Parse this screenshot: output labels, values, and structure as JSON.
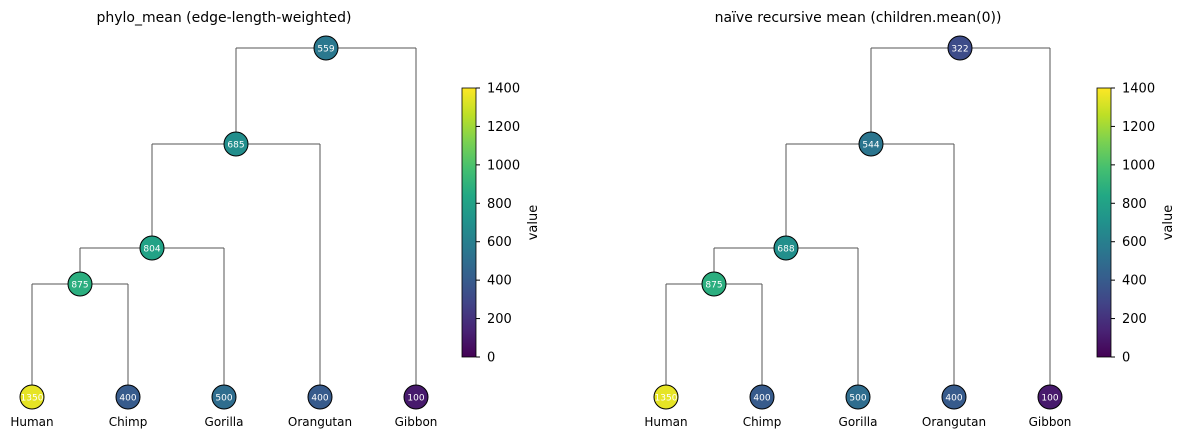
{
  "chart_data": [
    {
      "type": "tree",
      "title": "phylo_mean (edge-length-weighted)",
      "leaves": [
        {
          "name": "Human",
          "value": 1350
        },
        {
          "name": "Chimp",
          "value": 400
        },
        {
          "name": "Gorilla",
          "value": 500
        },
        {
          "name": "Orangutan",
          "value": 400
        },
        {
          "name": "Gibbon",
          "value": 100
        }
      ],
      "internal_nodes": [
        {
          "id": "n1",
          "children": [
            "Human",
            "Chimp"
          ],
          "value": 875
        },
        {
          "id": "n2",
          "children": [
            "n1",
            "Gorilla"
          ],
          "value": 804
        },
        {
          "id": "n3",
          "children": [
            "n2",
            "Orangutan"
          ],
          "value": 685
        },
        {
          "id": "root",
          "children": [
            "n3",
            "Gibbon"
          ],
          "value": 559
        }
      ],
      "colorbar": {
        "label": "value",
        "min": 0,
        "max": 1400,
        "ticks": [
          0,
          200,
          400,
          600,
          800,
          1000,
          1200,
          1400
        ],
        "colormap": "viridis"
      }
    },
    {
      "type": "tree",
      "title": "naïve recursive mean (children.mean(0))",
      "leaves": [
        {
          "name": "Human",
          "value": 1350
        },
        {
          "name": "Chimp",
          "value": 400
        },
        {
          "name": "Gorilla",
          "value": 500
        },
        {
          "name": "Orangutan",
          "value": 400
        },
        {
          "name": "Gibbon",
          "value": 100
        }
      ],
      "internal_nodes": [
        {
          "id": "n1",
          "children": [
            "Human",
            "Chimp"
          ],
          "value": 875
        },
        {
          "id": "n2",
          "children": [
            "n1",
            "Gorilla"
          ],
          "value": 688
        },
        {
          "id": "n3",
          "children": [
            "n2",
            "Orangutan"
          ],
          "value": 544
        },
        {
          "id": "root",
          "children": [
            "n3",
            "Gibbon"
          ],
          "value": 322
        }
      ],
      "colorbar": {
        "label": "value",
        "min": 0,
        "max": 1400,
        "ticks": [
          0,
          200,
          400,
          600,
          800,
          1000,
          1200,
          1400
        ],
        "colormap": "viridis"
      }
    }
  ]
}
